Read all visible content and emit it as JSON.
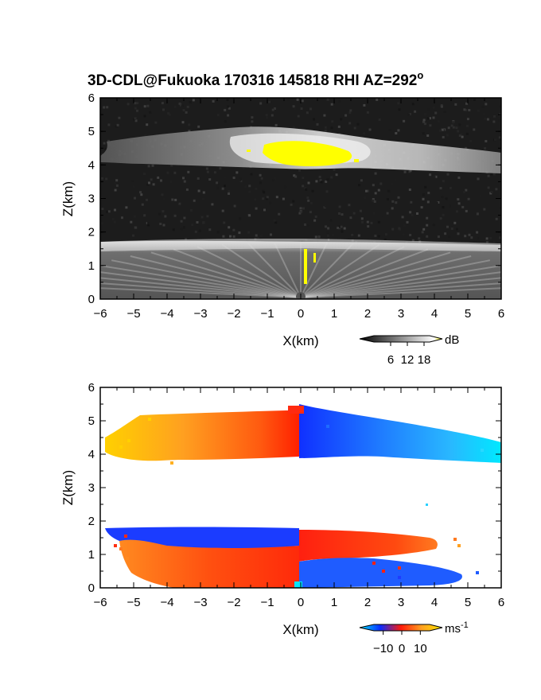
{
  "figure": {
    "title": "3D-CDL@Fukuoka 170316 145818 RHI AZ=292",
    "title_degree_mark": "o"
  },
  "chart_data": [
    {
      "type": "heatmap",
      "panel": "top",
      "quantity": "backscatter",
      "colormap": "grayscale with yellow above top of scale",
      "xlabel": "X(km)",
      "ylabel": "Z(km)",
      "xlim": [
        -6,
        6
      ],
      "ylim": [
        0,
        6
      ],
      "xticks": [
        "-6",
        "-5",
        "-4",
        "-3",
        "-2",
        "-1",
        "0",
        "1",
        "2",
        "3",
        "4",
        "5",
        "6"
      ],
      "yticks": [
        "0",
        "1",
        "2",
        "3",
        "4",
        "5",
        "6"
      ],
      "colorbar": {
        "unit": "dB",
        "ticks": [
          "6",
          "12",
          "18"
        ],
        "range": [
          0,
          20
        ],
        "colors": [
          "#000000",
          "#ffffff",
          "#ffff00"
        ]
      },
      "layers": [
        {
          "name": "upper cloud layer",
          "z_base_km": 3.95,
          "z_top_km": 5.0,
          "x_range_km": [
            -5.8,
            6.0
          ]
        },
        {
          "name": "lower boundary layer",
          "z_base_km": 0.0,
          "z_top_km": 1.72,
          "x_range_km": [
            -6.0,
            6.0
          ]
        },
        {
          "name": "saturated core (yellow)",
          "z_base_km": 4.1,
          "z_top_km": 4.75,
          "x_range_km": [
            -1.6,
            1.8
          ]
        }
      ],
      "grid": false
    },
    {
      "type": "heatmap",
      "panel": "bottom",
      "quantity": "radial velocity",
      "colormap": "cyan-blue-red-orange-yellow",
      "xlabel": "X(km)",
      "ylabel": "Z(km)",
      "xlim": [
        -6,
        6
      ],
      "ylim": [
        0,
        6
      ],
      "xticks": [
        "-6",
        "-5",
        "-4",
        "-3",
        "-2",
        "-1",
        "0",
        "1",
        "2",
        "3",
        "4",
        "5",
        "6"
      ],
      "yticks": [
        "0",
        "1",
        "2",
        "3",
        "4",
        "5",
        "6"
      ],
      "colorbar": {
        "unit": "ms",
        "unit_exponent": "-1",
        "ticks": [
          "-10",
          "0",
          "10"
        ],
        "range": [
          -15,
          15
        ],
        "colors": [
          "#00e5ff",
          "#0a2cff",
          "#ff1a0a",
          "#ffa020",
          "#ffe600"
        ]
      },
      "layers": [
        {
          "name": "upper layer west",
          "z_base_km": 3.9,
          "z_top_km": 5.15,
          "x_range_km": [
            -5.8,
            0.0
          ],
          "velocity_ms": [
            12,
            3
          ]
        },
        {
          "name": "upper layer east",
          "z_base_km": 3.75,
          "z_top_km": 5.4,
          "x_range_km": [
            0.0,
            6.0
          ],
          "velocity_ms": [
            -4,
            -13
          ]
        },
        {
          "name": "lower layer top band",
          "z_base_km": 1.2,
          "z_top_km": 1.72,
          "x_range_km": [
            -5.9,
            0.0
          ],
          "velocity_ms": [
            -5,
            -5
          ]
        },
        {
          "name": "lower layer east",
          "z_base_km": 0.9,
          "z_top_km": 1.7,
          "x_range_km": [
            0.0,
            4.3
          ],
          "velocity_ms": [
            2,
            8
          ]
        },
        {
          "name": "lower layer body west",
          "z_base_km": 0.0,
          "z_top_km": 1.25,
          "x_range_km": [
            -5.3,
            0.0
          ],
          "velocity_ms": [
            8,
            2
          ]
        },
        {
          "name": "lower layer body east",
          "z_base_km": 0.0,
          "z_top_km": 0.95,
          "x_range_km": [
            0.0,
            4.8
          ],
          "velocity_ms": [
            -5,
            -7
          ]
        }
      ],
      "grid": false
    }
  ]
}
